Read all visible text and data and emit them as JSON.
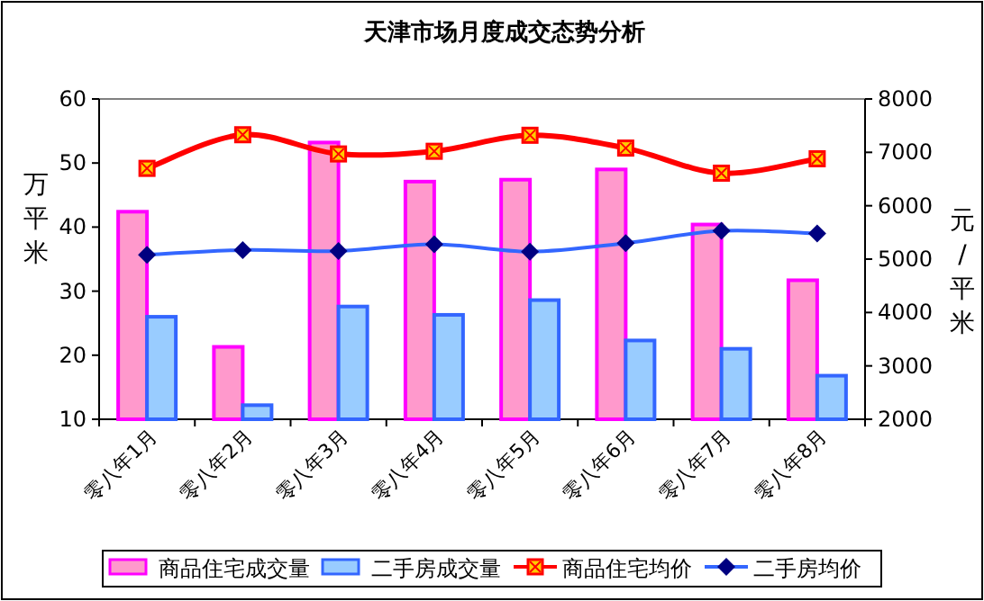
{
  "chart_data": {
    "type": "bar",
    "title": "天津市场月度成交态势分析",
    "ylabel": "万平米",
    "y2label": "元/平米",
    "categories": [
      "零八年1月",
      "零八年2月",
      "零八年3月",
      "零八年4月",
      "零八年5月",
      "零八年6月",
      "零八年7月",
      "零八年8月"
    ],
    "series": [
      {
        "name": "商品住宅成交量",
        "color": "#ff99cc",
        "values": [
          42.4,
          21.3,
          53.2,
          47.1,
          47.4,
          49.0,
          40.4,
          31.7
        ]
      },
      {
        "name": "二手房成交量",
        "color": "#99ccff",
        "values": [
          26.0,
          12.2,
          27.6,
          26.3,
          28.6,
          22.3,
          21.0,
          16.8
        ]
      },
      {
        "name": "商品住宅均价",
        "type": "line",
        "axis": "y2",
        "marker": "square",
        "color": "#ff0000",
        "values": [
          6700,
          7330,
          6970,
          7020,
          7320,
          7080,
          6610,
          6880
        ]
      },
      {
        "name": "二手房均价",
        "type": "line",
        "axis": "y2",
        "marker": "diamond",
        "color": "#3366ff",
        "values": [
          5080,
          5170,
          5150,
          5280,
          5140,
          5300,
          5530,
          5480
        ]
      }
    ],
    "ylim": [
      10,
      60
    ],
    "yticks": [
      10,
      20,
      30,
      40,
      50,
      60
    ],
    "y2lim": [
      2000,
      8000
    ],
    "y2ticks": [
      2000,
      3000,
      4000,
      5000,
      6000,
      7000,
      8000
    ],
    "legend": "bottom",
    "grid": false
  }
}
